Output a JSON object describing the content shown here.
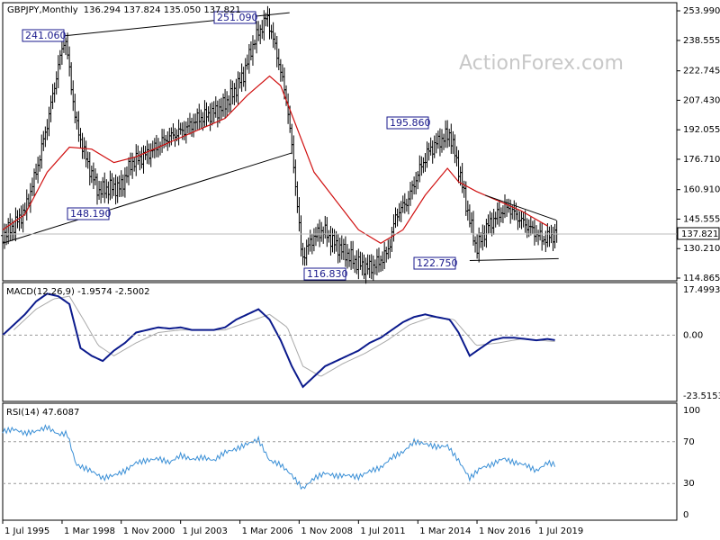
{
  "chart_data": [
    {
      "type": "candlestick",
      "header": {
        "symbol": "GBPJPY,Monthly",
        "ohlc": "136.294 137.824 135.050 137.821"
      },
      "watermark": "ActionForex.com",
      "price_axis": {
        "ticks": [
          "253.990",
          "238.555",
          "222.745",
          "207.430",
          "192.055",
          "176.710",
          "160.910",
          "145.555",
          "130.210",
          "114.865"
        ],
        "last_price": "137.821"
      },
      "annotations": [
        "251.090",
        "241.060",
        "148.190",
        "195.860",
        "116.830",
        "122.750"
      ],
      "x_ticks": [
        "1 Jul 1995",
        "1 Mar 1998",
        "1 Nov 2000",
        "1 Jul 2003",
        "1 Mar 2006",
        "1 Nov 2008",
        "1 Jul 2011",
        "1 Mar 2014",
        "1 Nov 2016",
        "1 Jul 2019"
      ],
      "close_path": [
        [
          1995.5,
          137
        ],
        [
          1996.0,
          142
        ],
        [
          1996.5,
          150
        ],
        [
          1997.0,
          170
        ],
        [
          1997.5,
          195
        ],
        [
          1998.0,
          225
        ],
        [
          1998.3,
          241
        ],
        [
          1998.8,
          195
        ],
        [
          1999.3,
          175
        ],
        [
          1999.8,
          160
        ],
        [
          2000.3,
          162
        ],
        [
          2000.8,
          162
        ],
        [
          2001.3,
          175
        ],
        [
          2001.8,
          178
        ],
        [
          2002.3,
          182
        ],
        [
          2002.8,
          187
        ],
        [
          2003.3,
          190
        ],
        [
          2003.8,
          193
        ],
        [
          2004.3,
          198
        ],
        [
          2004.8,
          200
        ],
        [
          2005.3,
          203
        ],
        [
          2005.8,
          210
        ],
        [
          2006.3,
          220
        ],
        [
          2006.8,
          238
        ],
        [
          2007.4,
          251
        ],
        [
          2007.9,
          228
        ],
        [
          2008.3,
          205
        ],
        [
          2008.7,
          160
        ],
        [
          2008.95,
          125
        ],
        [
          2009.4,
          135
        ],
        [
          2009.9,
          140
        ],
        [
          2010.4,
          133
        ],
        [
          2010.9,
          128
        ],
        [
          2011.4,
          123
        ],
        [
          2011.9,
          120
        ],
        [
          2012.3,
          122
        ],
        [
          2012.8,
          128
        ],
        [
          2013.2,
          148
        ],
        [
          2013.7,
          155
        ],
        [
          2014.2,
          170
        ],
        [
          2014.6,
          180
        ],
        [
          2015.0,
          185
        ],
        [
          2015.6,
          190
        ],
        [
          2016.0,
          172
        ],
        [
          2016.4,
          150
        ],
        [
          2016.8,
          130
        ],
        [
          2017.3,
          142
        ],
        [
          2017.8,
          148
        ],
        [
          2018.2,
          152
        ],
        [
          2018.8,
          145
        ],
        [
          2019.3,
          140
        ],
        [
          2019.8,
          135
        ],
        [
          2020.2,
          137
        ],
        [
          2020.4,
          138
        ]
      ],
      "ma_path": [
        [
          1995.5,
          140
        ],
        [
          1996.5,
          148
        ],
        [
          1997.5,
          170
        ],
        [
          1998.5,
          183
        ],
        [
          1999.5,
          182
        ],
        [
          2000.5,
          175
        ],
        [
          2001.5,
          178
        ],
        [
          2002.5,
          183
        ],
        [
          2003.5,
          188
        ],
        [
          2004.5,
          193
        ],
        [
          2005.5,
          198
        ],
        [
          2006.5,
          210
        ],
        [
          2007.5,
          220
        ],
        [
          2008.0,
          215
        ],
        [
          2008.5,
          200
        ],
        [
          2009.5,
          170
        ],
        [
          2010.5,
          155
        ],
        [
          2011.5,
          140
        ],
        [
          2012.5,
          133
        ],
        [
          2013.5,
          140
        ],
        [
          2014.5,
          158
        ],
        [
          2015.5,
          172
        ],
        [
          2016.0,
          165
        ],
        [
          2016.8,
          160
        ],
        [
          2017.8,
          155
        ],
        [
          2018.8,
          150
        ],
        [
          2020.0,
          142
        ]
      ],
      "trendlines": [
        {
          "from": [
            1998.3,
            241
          ],
          "to": [
            2008.4,
            253
          ]
        },
        {
          "from": [
            1995.5,
            133
          ],
          "to": [
            2008.5,
            180
          ]
        },
        {
          "from": [
            2017.2,
            158
          ],
          "to": [
            2020.4,
            145
          ]
        },
        {
          "from": [
            2016.5,
            124
          ],
          "to": [
            2020.5,
            125
          ]
        }
      ]
    },
    {
      "type": "line",
      "label": "MACD(12,26,9) -1.9574 -2.5002",
      "ticks": [
        "17.4993",
        "0.00",
        "-23.5153"
      ],
      "macd": [
        [
          1995.5,
          0
        ],
        [
          1996.5,
          8
        ],
        [
          1997.0,
          13
        ],
        [
          1997.5,
          16
        ],
        [
          1998.0,
          15
        ],
        [
          1998.5,
          12
        ],
        [
          1999.0,
          -5
        ],
        [
          1999.5,
          -8
        ],
        [
          2000.0,
          -10
        ],
        [
          2000.5,
          -6
        ],
        [
          2001.0,
          -3
        ],
        [
          2001.5,
          1
        ],
        [
          2002.0,
          2
        ],
        [
          2002.5,
          3
        ],
        [
          2003.0,
          2.5
        ],
        [
          2003.5,
          3
        ],
        [
          2004.0,
          2
        ],
        [
          2004.5,
          2
        ],
        [
          2005.0,
          2
        ],
        [
          2005.5,
          3
        ],
        [
          2006.0,
          6
        ],
        [
          2006.5,
          8
        ],
        [
          2007.0,
          10
        ],
        [
          2007.5,
          6
        ],
        [
          2008.0,
          -2
        ],
        [
          2008.5,
          -12
        ],
        [
          2009.0,
          -20
        ],
        [
          2009.5,
          -16
        ],
        [
          2010.0,
          -12
        ],
        [
          2010.5,
          -10
        ],
        [
          2011.0,
          -8
        ],
        [
          2011.5,
          -6
        ],
        [
          2012.0,
          -3
        ],
        [
          2012.5,
          -1
        ],
        [
          2013.0,
          2
        ],
        [
          2013.5,
          5
        ],
        [
          2014.0,
          7
        ],
        [
          2014.5,
          8
        ],
        [
          2015.0,
          7
        ],
        [
          2015.6,
          6
        ],
        [
          2016.0,
          1
        ],
        [
          2016.5,
          -8
        ],
        [
          2017.0,
          -5
        ],
        [
          2017.5,
          -2
        ],
        [
          2018.0,
          -1
        ],
        [
          2018.5,
          -1
        ],
        [
          2019.0,
          -1.5
        ],
        [
          2019.5,
          -2
        ],
        [
          2020.0,
          -1.5
        ],
        [
          2020.4,
          -2
        ]
      ],
      "signal": [
        [
          1996.0,
          2
        ],
        [
          1997.0,
          10
        ],
        [
          1997.8,
          14
        ],
        [
          1998.5,
          15
        ],
        [
          1999.2,
          5
        ],
        [
          1999.8,
          -4
        ],
        [
          2000.5,
          -8
        ],
        [
          2001.5,
          -3
        ],
        [
          2002.5,
          1
        ],
        [
          2003.5,
          2
        ],
        [
          2004.5,
          2
        ],
        [
          2005.5,
          2
        ],
        [
          2006.5,
          5
        ],
        [
          2007.5,
          8
        ],
        [
          2008.3,
          3
        ],
        [
          2009.0,
          -12
        ],
        [
          2009.8,
          -16
        ],
        [
          2010.8,
          -11
        ],
        [
          2011.8,
          -7
        ],
        [
          2012.8,
          -2
        ],
        [
          2013.8,
          4
        ],
        [
          2014.8,
          7
        ],
        [
          2015.8,
          6
        ],
        [
          2016.8,
          -4
        ],
        [
          2017.8,
          -3
        ],
        [
          2018.8,
          -1.5
        ],
        [
          2020.4,
          -2.5
        ]
      ]
    },
    {
      "type": "line",
      "label": "RSI(14) 47.6087",
      "ticks": [
        "100",
        "70",
        "30",
        "0"
      ],
      "rsi": [
        [
          1995.5,
          80
        ],
        [
          1996.0,
          82
        ],
        [
          1996.5,
          78
        ],
        [
          1997.0,
          80
        ],
        [
          1997.5,
          84
        ],
        [
          1998.0,
          77
        ],
        [
          1998.4,
          78
        ],
        [
          1998.8,
          48
        ],
        [
          1999.5,
          42
        ],
        [
          2000.0,
          35
        ],
        [
          2000.5,
          38
        ],
        [
          2001.0,
          42
        ],
        [
          2001.5,
          50
        ],
        [
          2002.0,
          52
        ],
        [
          2002.5,
          54
        ],
        [
          2003.0,
          50
        ],
        [
          2003.5,
          57
        ],
        [
          2004.0,
          53
        ],
        [
          2004.5,
          55
        ],
        [
          2005.0,
          52
        ],
        [
          2005.5,
          60
        ],
        [
          2006.0,
          63
        ],
        [
          2006.5,
          68
        ],
        [
          2007.0,
          72
        ],
        [
          2007.5,
          52
        ],
        [
          2008.0,
          48
        ],
        [
          2008.5,
          38
        ],
        [
          2009.0,
          25
        ],
        [
          2009.5,
          35
        ],
        [
          2010.0,
          40
        ],
        [
          2010.5,
          37
        ],
        [
          2011.0,
          38
        ],
        [
          2011.5,
          36
        ],
        [
          2012.0,
          42
        ],
        [
          2012.5,
          45
        ],
        [
          2013.0,
          55
        ],
        [
          2013.5,
          60
        ],
        [
          2014.0,
          70
        ],
        [
          2014.5,
          68
        ],
        [
          2015.0,
          65
        ],
        [
          2015.5,
          66
        ],
        [
          2016.0,
          52
        ],
        [
          2016.5,
          35
        ],
        [
          2017.0,
          45
        ],
        [
          2017.5,
          48
        ],
        [
          2018.0,
          54
        ],
        [
          2018.5,
          50
        ],
        [
          2019.0,
          48
        ],
        [
          2019.5,
          42
        ],
        [
          2020.0,
          50
        ],
        [
          2020.4,
          47.6
        ]
      ]
    }
  ]
}
